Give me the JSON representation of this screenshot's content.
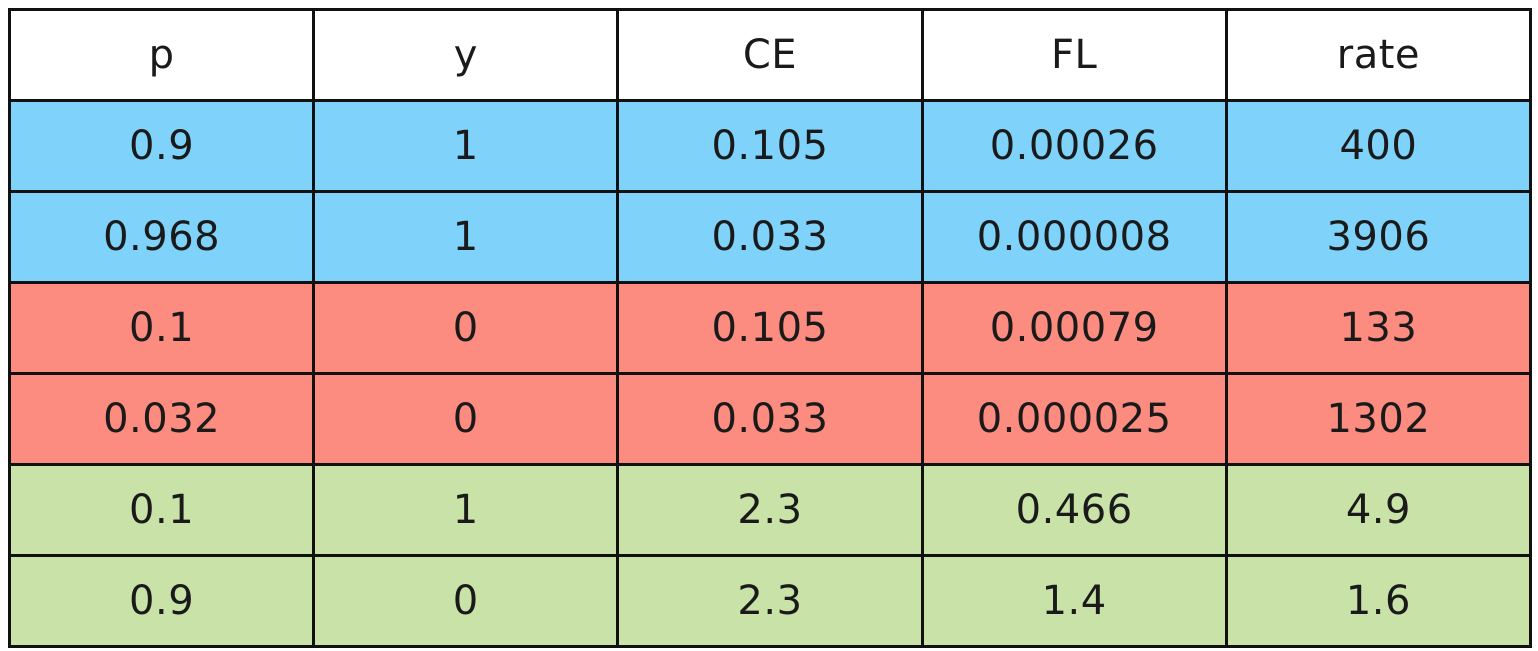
{
  "table": {
    "headers": [
      "p",
      "y",
      "CE",
      "FL",
      "rate"
    ],
    "rows": [
      {
        "group": "blue",
        "cells": [
          "0.9",
          "1",
          "0.105",
          "0.00026",
          "400"
        ]
      },
      {
        "group": "blue",
        "cells": [
          "0.968",
          "1",
          "0.033",
          "0.000008",
          "3906"
        ]
      },
      {
        "group": "red",
        "cells": [
          "0.1",
          "0",
          "0.105",
          "0.00079",
          "133"
        ]
      },
      {
        "group": "red",
        "cells": [
          "0.032",
          "0",
          "0.033",
          "0.000025",
          "1302"
        ]
      },
      {
        "group": "green",
        "cells": [
          "0.1",
          "1",
          "2.3",
          "0.466",
          "4.9"
        ]
      },
      {
        "group": "green",
        "cells": [
          "0.9",
          "0",
          "2.3",
          "1.4",
          "1.6"
        ]
      }
    ],
    "colors": {
      "blue": "#7fd2fa",
      "red": "#fc8b80",
      "green": "#c9e2a8"
    }
  }
}
